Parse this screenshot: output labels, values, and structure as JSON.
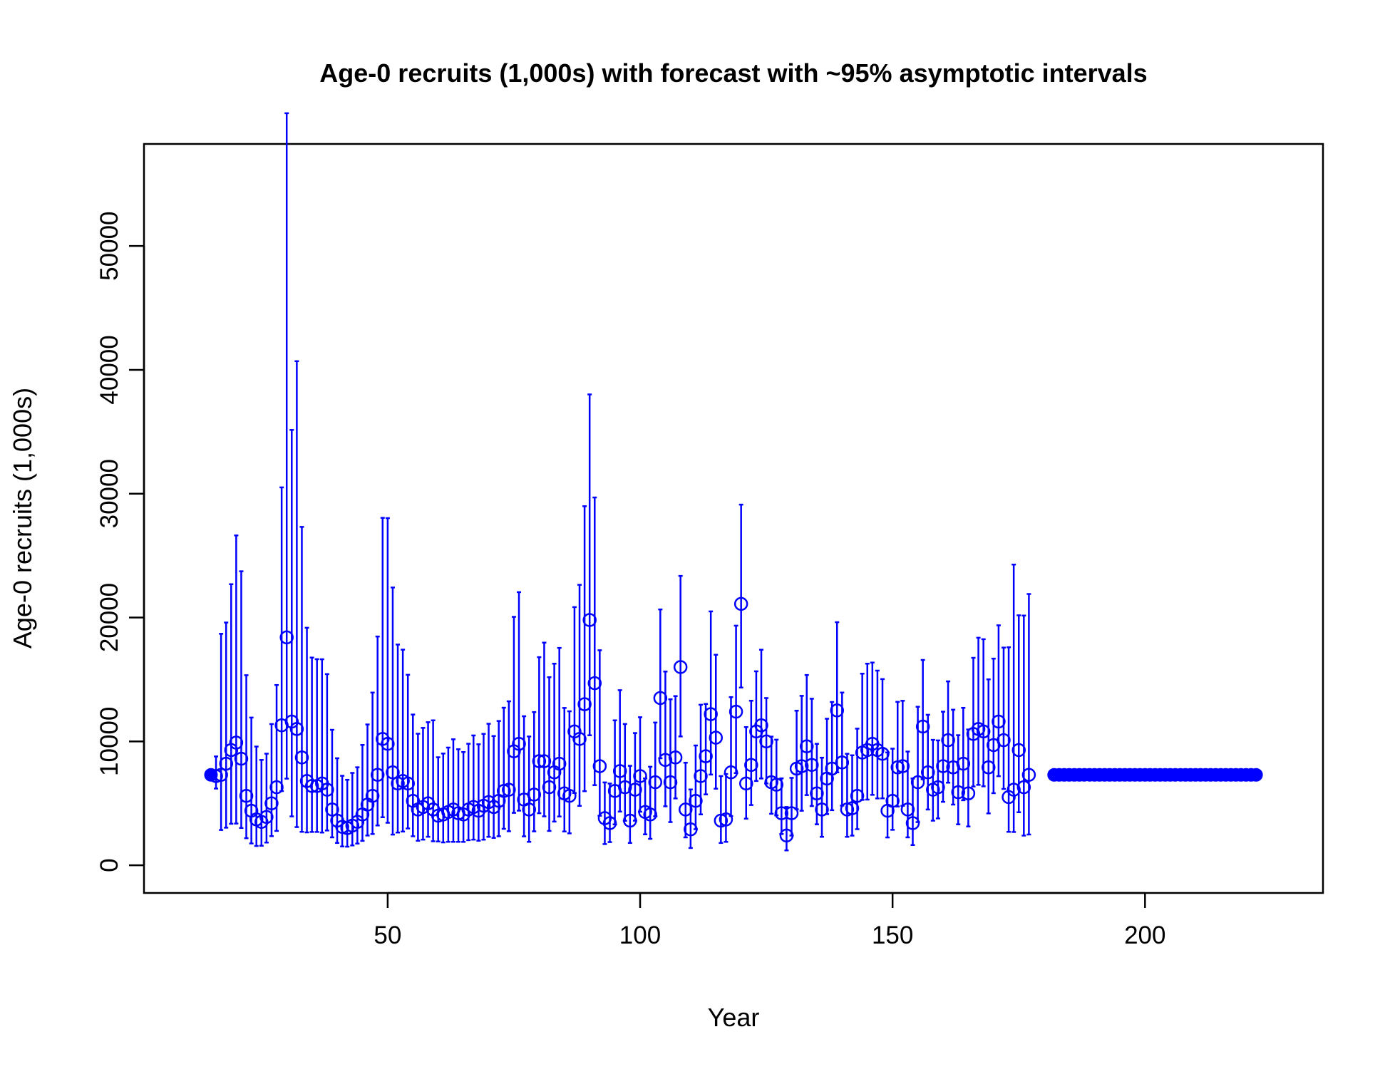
{
  "chart_data": {
    "type": "scatter",
    "title": "Age-0 recruits (1,000s) with forecast with ~95% asymptotic intervals",
    "xlabel": "Year",
    "ylabel": "Age-0 recruits (1,000s)",
    "xlim": [
      7,
      230
    ],
    "ylim": [
      0,
      56000
    ],
    "xticks": [
      50,
      100,
      150,
      200
    ],
    "yticks": [
      0,
      10000,
      20000,
      30000,
      40000,
      50000
    ],
    "color": "#0000ff",
    "grid": false,
    "legend": "none",
    "unfished_point": {
      "x": 15,
      "y": 7300
    },
    "estimates": {
      "x_start": 16,
      "values": [
        7200,
        7300,
        8200,
        9300,
        9900,
        8600,
        5600,
        4400,
        3700,
        3500,
        3900,
        5000,
        6300,
        11300,
        18400,
        11600,
        11000,
        8700,
        6800,
        6400,
        6400,
        6600,
        6100,
        4500,
        3600,
        3100,
        3000,
        3200,
        3500,
        4100,
        4900,
        5600,
        7300,
        10200,
        9800,
        7500,
        6600,
        6800,
        6600,
        5200,
        4500,
        4700,
        5000,
        4500,
        4000,
        4100,
        4300,
        4500,
        4200,
        4100,
        4500,
        4700,
        4400,
        4800,
        5100,
        4700,
        5200,
        6000,
        6100,
        9200,
        9800,
        5300,
        4500,
        5700,
        8400,
        8400,
        6300,
        7500,
        8200,
        5800,
        5600,
        10800,
        10200,
        13000,
        19800,
        14700,
        8000,
        3800,
        3400,
        6000,
        7600,
        6300,
        3600,
        6100,
        7200,
        4300,
        4100,
        6700,
        13500,
        8500,
        6700,
        8700,
        16000,
        4500,
        2900,
        5200,
        7200,
        8800,
        12200,
        10300,
        3600,
        3700,
        7500,
        12400,
        21100,
        6600,
        8100,
        10800,
        11300,
        10000,
        6700,
        6500,
        4200,
        2400,
        4200,
        7800,
        8000,
        9600,
        8100,
        5800,
        4500,
        7000,
        7800,
        12500,
        8300,
        4500,
        4600,
        5600,
        9100,
        9300,
        9800,
        9300,
        9000,
        4400,
        5200,
        7900,
        8000,
        4500,
        3400,
        6700,
        11200,
        7500,
        6100,
        6300,
        8000,
        10100,
        7900,
        5900,
        8200,
        5800,
        10600,
        11000,
        10800,
        7900,
        9700,
        11600,
        10100,
        5500,
        6100,
        9300,
        6300,
        7300
      ]
    },
    "interval_factor_upper": [
      1.22,
      2.56,
      2.39,
      2.44,
      2.69,
      2.76,
      2.74,
      2.71,
      2.59,
      2.43,
      2.31,
      2.28,
      2.31,
      2.7,
      3.3,
      3.03,
      3.7,
      3.14,
      2.82,
      2.62,
      2.6,
      2.52,
      2.53,
      2.43,
      2.4,
      2.33,
      2.3,
      2.33,
      2.26,
      2.37,
      2.32,
      2.49,
      2.53,
      2.75,
      2.86,
      2.99,
      2.7,
      2.56,
      2.33,
      2.34,
      2.36,
      2.36,
      2.31,
      2.6,
      2.18,
      2.2,
      2.21,
      2.26,
      2.23,
      2.23,
      2.18,
      2.23,
      2.22,
      2.21,
      2.24,
      2.22,
      2.24,
      2.12,
      2.17,
      2.18,
      2.25,
      2.27,
      2.31,
      2.17,
      2.0,
      2.14,
      2.41,
      2.17,
      2.14,
      2.19,
      2.22,
      1.93,
      2.22,
      2.23,
      1.92,
      2.02,
      2.17,
      1.76,
      1.94,
      1.95,
      1.86,
      1.81,
      2.23,
      1.75,
      1.66,
      1.63,
      1.94,
      1.72,
      1.53,
      1.84,
      2.0,
      1.57,
      1.46,
      1.84,
      2.11,
      1.86,
      1.8,
      1.48,
      1.68,
      1.65,
      2.0,
      1.99,
      1.81,
      1.56,
      1.38,
      1.69,
      1.64,
      1.45,
      1.54,
      1.35,
      1.55,
      1.56,
      1.67,
      1.96,
      1.68,
      1.6,
      1.71,
      1.6,
      1.66,
      1.69,
      1.93,
      1.69,
      1.69,
      1.57,
      1.68,
      2.0,
      1.93,
      1.97,
      1.7,
      1.75,
      1.67,
      1.69,
      1.67,
      2.07,
      1.81,
      1.67,
      1.66,
      2.04,
      2.06,
      1.91,
      1.48,
      1.62,
      1.66,
      1.6,
      1.55,
      1.47,
      1.59,
      1.78,
      1.55,
      1.89,
      1.58,
      1.67,
      1.69,
      1.9,
      1.72,
      1.67,
      1.74,
      3.2,
      3.98,
      2.17,
      3.2,
      3.0
    ],
    "interval_factor_lower": [
      0.86,
      0.39,
      0.37,
      0.36,
      0.34,
      0.35,
      0.39,
      0.4,
      0.42,
      0.45,
      0.47,
      0.47,
      0.44,
      0.53,
      0.38,
      0.34,
      0.28,
      0.31,
      0.39,
      0.42,
      0.42,
      0.4,
      0.46,
      0.5,
      0.5,
      0.49,
      0.5,
      0.5,
      0.5,
      0.48,
      0.49,
      0.45,
      0.44,
      0.38,
      0.35,
      0.33,
      0.4,
      0.4,
      0.45,
      0.45,
      0.44,
      0.44,
      0.46,
      0.43,
      0.48,
      0.45,
      0.44,
      0.42,
      0.45,
      0.46,
      0.45,
      0.44,
      0.45,
      0.43,
      0.45,
      0.47,
      0.45,
      0.49,
      0.45,
      0.46,
      0.45,
      0.44,
      0.42,
      0.48,
      0.5,
      0.47,
      0.44,
      0.47,
      0.48,
      0.47,
      0.46,
      0.54,
      0.47,
      0.46,
      0.53,
      0.44,
      0.5,
      0.45,
      0.55,
      0.55,
      0.57,
      0.57,
      0.5,
      0.59,
      0.6,
      0.58,
      0.52,
      0.59,
      0.64,
      0.56,
      0.52,
      0.62,
      0.65,
      0.5,
      0.48,
      0.56,
      0.57,
      0.65,
      0.6,
      0.6,
      0.5,
      0.51,
      0.53,
      0.6,
      0.68,
      0.57,
      0.6,
      0.63,
      0.62,
      0.66,
      0.62,
      0.62,
      0.6,
      0.5,
      0.57,
      0.58,
      0.55,
      0.59,
      0.59,
      0.57,
      0.51,
      0.59,
      0.57,
      0.6,
      0.58,
      0.51,
      0.52,
      0.52,
      0.58,
      0.57,
      0.58,
      0.58,
      0.6,
      0.51,
      0.55,
      0.6,
      0.6,
      0.5,
      0.48,
      0.52,
      0.62,
      0.6,
      0.59,
      0.6,
      0.64,
      0.66,
      0.62,
      0.56,
      0.64,
      0.54,
      0.6,
      0.59,
      0.59,
      0.53,
      0.6,
      0.62,
      0.61,
      0.49,
      0.44,
      0.46,
      0.38,
      0.34
    ],
    "forecast": {
      "x_start": 182,
      "x_end": 222,
      "value": 7300
    }
  }
}
